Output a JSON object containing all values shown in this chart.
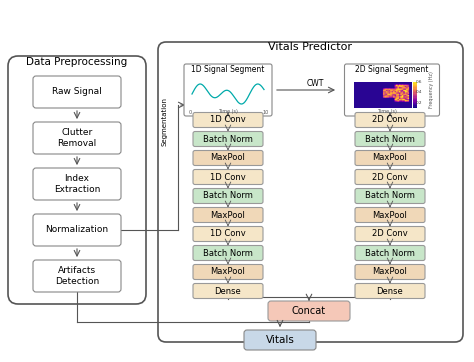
{
  "title": "Vitals Predictor",
  "preprocessing_title": "Data Preprocessing",
  "preprocessing_boxes": [
    "Raw Signal",
    "Clutter\nRemoval",
    "Index\nExtraction",
    "Normalization",
    "Artifacts\nDetection"
  ],
  "signal_1d_title": "1D Signal Segment",
  "signal_2d_title": "2D Signal Segment",
  "layer_1d": [
    "1D Conv",
    "Batch Norm",
    "MaxPool",
    "1D Conv",
    "Batch Norm",
    "MaxPool",
    "1D Conv",
    "Batch Norm",
    "MaxPool",
    "Dense"
  ],
  "layer_2d": [
    "2D Conv",
    "Batch Norm",
    "MaxPool",
    "2D Conv",
    "Batch Norm",
    "MaxPool",
    "2D Conv",
    "Batch Norm",
    "MaxPool",
    "Dense"
  ],
  "concat_label": "Concat",
  "output_label": "Vitals",
  "segmentation_label": "Segmentation",
  "cwt_label": "CWT",
  "color_conv": "#F5E6C8",
  "color_bn": "#C8E6C9",
  "color_pool": "#F0D8B8",
  "color_dense": "#F5E6C8",
  "color_concat": "#F5C8B8",
  "color_vitals": "#C8D8E8",
  "color_preproc_border": "#555555",
  "bg_color": "#FFFFFF"
}
